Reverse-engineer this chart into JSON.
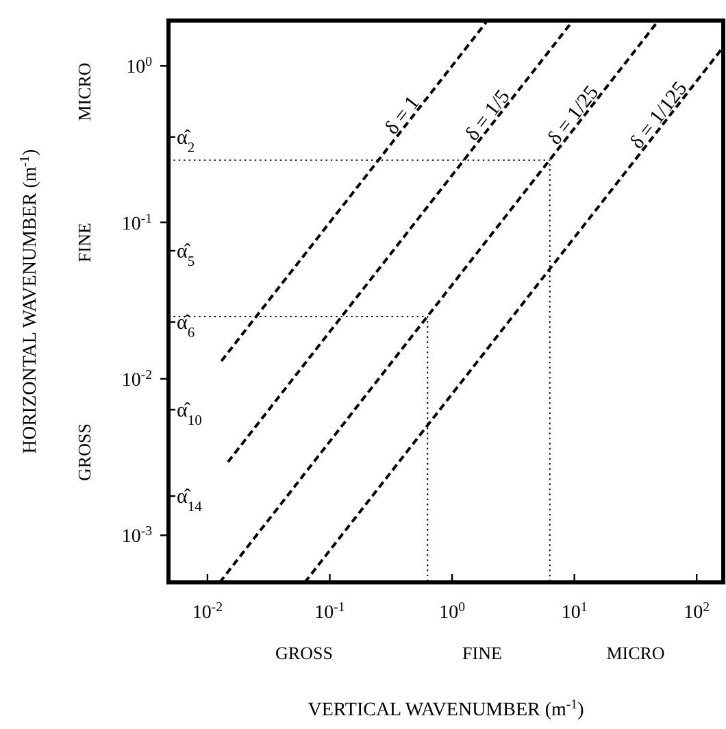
{
  "chart_data": {
    "type": "line",
    "xlabel": "VERTICAL WAVENUMBER (m$^{-1}$)",
    "ylabel": "HORIZONTAL WAVENUMBER (m$^{-1}$)",
    "log": "xy",
    "xlim": [
      0.0048,
      165
    ],
    "ylim": [
      0.0005,
      1.95
    ],
    "xticks": [
      {
        "value": 0.01,
        "label": "10$^{-2}$"
      },
      {
        "value": 0.1,
        "label": "10$^{-1}$"
      },
      {
        "value": 1,
        "label": "10$^{0}$"
      },
      {
        "value": 10,
        "label": "10$^{1}$"
      },
      {
        "value": 100,
        "label": "10$^{2}$"
      }
    ],
    "yticks": [
      {
        "value": 0.001,
        "label": "10$^{-3}$"
      },
      {
        "value": 0.01,
        "label": "10$^{-2}$"
      },
      {
        "value": 0.1,
        "label": "10$^{-1}$"
      },
      {
        "value": 1,
        "label": "10$^{0}$"
      }
    ],
    "grid": false,
    "marker": "none",
    "series": [
      {
        "name": "δ = 1",
        "color": "#000000",
        "line_style": "dashed",
        "x": [
          0.013,
          1.9
        ],
        "values": [
          0.013,
          1.9
        ]
      },
      {
        "name": "δ = 1/5",
        "color": "#000000",
        "line_style": "dashed",
        "x": [
          0.0147,
          9.5
        ],
        "values": [
          0.00294,
          1.9
        ]
      },
      {
        "name": "δ = 1/25",
        "color": "#000000",
        "line_style": "dashed",
        "x": [
          0.0126,
          47.5
        ],
        "values": [
          0.0005,
          1.9
        ]
      },
      {
        "name": "δ = 1/125",
        "color": "#000000",
        "line_style": "dashed",
        "x": [
          0.0625,
          165
        ],
        "values": [
          0.0005,
          1.32
        ]
      },
      {
        "color": "#000000",
        "line_style": "dotted",
        "x": [
          0.0048,
          6.3,
          6.3
        ],
        "values": [
          0.25,
          0.25,
          0.0005
        ]
      },
      {
        "color": "#000000",
        "line_style": "dotted",
        "x": [
          0.0048,
          0.63,
          0.63
        ],
        "values": [
          0.025,
          0.025,
          0.0005
        ]
      }
    ],
    "annotations": [
      "α̂$_{2}$",
      "α̂$_{5}$",
      "α̂$_{6}$",
      "α̂$_{10}$",
      "α̂$_{14}$",
      "MICRO",
      "FINE",
      "GROSS",
      "GROSS",
      "FINE",
      "MICRO"
    ]
  }
}
